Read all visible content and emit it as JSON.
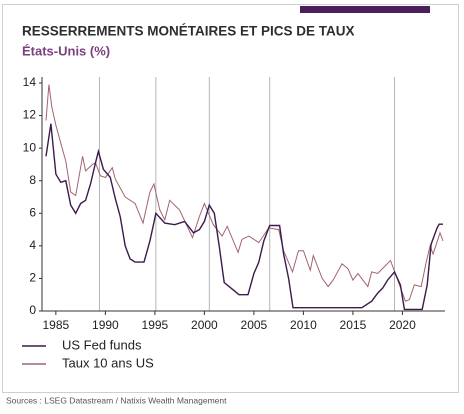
{
  "chart_data": {
    "type": "line",
    "title": "RESSERREMENTS MONÉTAIRES ET PICS DE TAUX",
    "subtitle": "États-Unis (%)",
    "source": "Sources : LSEG Datastream / Natixis Wealth Management",
    "xlim": [
      1983.6,
      2024.3
    ],
    "xticks": [
      1985,
      1990,
      1995,
      2000,
      2005,
      2010,
      2015,
      2020
    ],
    "ylim": [
      0,
      14
    ],
    "yticks": [
      0,
      2,
      4,
      6,
      8,
      10,
      12,
      14
    ],
    "vlines": [
      1989.4,
      1995.1,
      2000.5,
      2006.6,
      2019.2
    ],
    "series": [
      {
        "name": "US Fed funds",
        "color": "#3b1a4c",
        "x": [
          1984.0,
          1984.5,
          1985.0,
          1985.5,
          1986.0,
          1986.5,
          1987.0,
          1987.5,
          1988.0,
          1988.5,
          1989.0,
          1989.3,
          1989.8,
          1990.5,
          1991.0,
          1991.5,
          1992.0,
          1992.5,
          1993.0,
          1993.9,
          1994.5,
          1995.1,
          1996.0,
          1997.0,
          1998.0,
          1998.9,
          1999.5,
          2000.0,
          2000.5,
          2001.0,
          2001.5,
          2002.0,
          2002.9,
          2003.5,
          2004.4,
          2005.0,
          2005.5,
          2006.0,
          2006.6,
          2007.6,
          2008.0,
          2008.5,
          2008.95,
          2015.9,
          2016.9,
          2017.5,
          2018.0,
          2018.5,
          2019.2,
          2019.8,
          2020.2,
          2022.0,
          2022.5,
          2022.9,
          2023.5,
          2023.7,
          2024.1
        ],
        "values": [
          9.5,
          11.5,
          8.4,
          7.9,
          8.0,
          6.5,
          6.0,
          6.6,
          6.8,
          7.8,
          9.1,
          9.8,
          8.7,
          8.2,
          6.9,
          5.8,
          4.0,
          3.2,
          3.0,
          3.0,
          4.3,
          6.0,
          5.4,
          5.3,
          5.5,
          4.8,
          5.0,
          5.5,
          6.5,
          6.0,
          4.0,
          1.75,
          1.3,
          1.0,
          1.0,
          2.3,
          3.0,
          4.3,
          5.25,
          5.25,
          3.5,
          2.0,
          0.2,
          0.2,
          0.6,
          1.1,
          1.4,
          1.9,
          2.4,
          1.6,
          0.1,
          0.1,
          1.6,
          4.1,
          5.1,
          5.33,
          5.33
        ]
      },
      {
        "name": "Taux 10 ans US",
        "color": "#a3636f",
        "x": [
          1984.0,
          1984.3,
          1984.6,
          1985.0,
          1985.5,
          1986.0,
          1986.5,
          1987.0,
          1987.7,
          1988.0,
          1988.7,
          1989.0,
          1989.5,
          1990.0,
          1990.7,
          1991.0,
          1992.0,
          1993.0,
          1993.8,
          1994.5,
          1994.9,
          1995.5,
          1996.0,
          1996.5,
          1997.5,
          1998.8,
          1999.5,
          2000.0,
          2000.9,
          2001.8,
          2002.3,
          2003.4,
          2003.8,
          2004.5,
          2005.5,
          2006.5,
          2007.5,
          2008.0,
          2008.9,
          2009.5,
          2010.0,
          2010.7,
          2011.0,
          2011.9,
          2012.5,
          2013.0,
          2013.9,
          2014.5,
          2015.0,
          2015.5,
          2016.5,
          2016.9,
          2017.5,
          2018.8,
          2019.7,
          2020.3,
          2020.7,
          2021.2,
          2021.9,
          2022.4,
          2022.8,
          2023.1,
          2023.8,
          2024.1
        ],
        "values": [
          11.7,
          13.9,
          12.5,
          11.4,
          10.3,
          9.2,
          7.3,
          7.1,
          9.5,
          8.6,
          9.0,
          9.1,
          8.3,
          8.2,
          8.8,
          8.1,
          7.0,
          6.6,
          5.4,
          7.3,
          7.8,
          6.2,
          5.6,
          6.8,
          6.2,
          4.5,
          5.8,
          6.6,
          5.3,
          4.6,
          5.2,
          3.6,
          4.4,
          4.6,
          4.2,
          5.1,
          5.0,
          3.7,
          2.4,
          3.7,
          3.7,
          2.5,
          3.4,
          2.0,
          1.5,
          1.9,
          2.9,
          2.6,
          1.9,
          2.3,
          1.5,
          2.4,
          2.3,
          3.1,
          1.6,
          0.6,
          0.7,
          1.6,
          1.5,
          3.0,
          4.0,
          3.5,
          4.8,
          4.3
        ]
      }
    ]
  }
}
